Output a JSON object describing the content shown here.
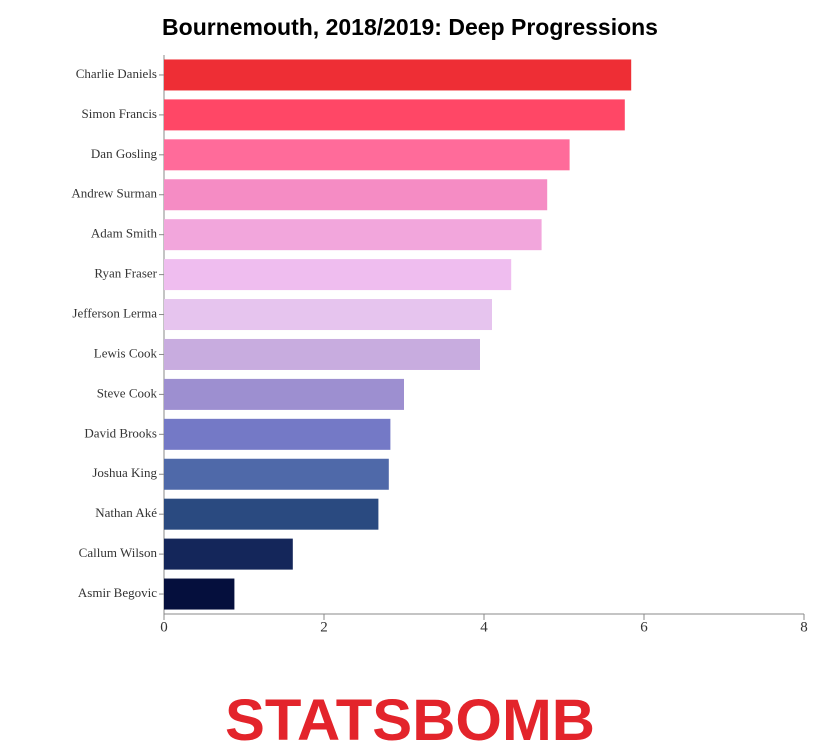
{
  "chart_data": {
    "type": "bar",
    "orientation": "horizontal",
    "title": "Bournemouth, 2018/2019: Deep Progressions",
    "categories": [
      "Charlie Daniels",
      "Simon Francis",
      "Dan Gosling",
      "Andrew Surman",
      "Adam Smith",
      "Ryan Fraser",
      "Jefferson Lerma",
      "Lewis Cook",
      "Steve Cook",
      "David Brooks",
      "Joshua King",
      "Nathan Aké",
      "Callum Wilson",
      "Asmir Begovic"
    ],
    "values": [
      5.84,
      5.76,
      5.07,
      4.79,
      4.72,
      4.34,
      4.1,
      3.95,
      3.0,
      2.83,
      2.81,
      2.68,
      1.61,
      0.88
    ],
    "colors": [
      "#ee2e35",
      "#ff4766",
      "#ff6b9a",
      "#f58cc4",
      "#f2a6dc",
      "#efbdef",
      "#e6c4ee",
      "#c8acdf",
      "#9d8fd0",
      "#7479c6",
      "#4f69a9",
      "#2a4a80",
      "#14265a",
      "#050f3d"
    ],
    "xlim": [
      0,
      8
    ],
    "xticks": [
      0,
      2,
      4,
      6,
      8
    ],
    "grid": false
  },
  "logo": "STATSBOMB"
}
